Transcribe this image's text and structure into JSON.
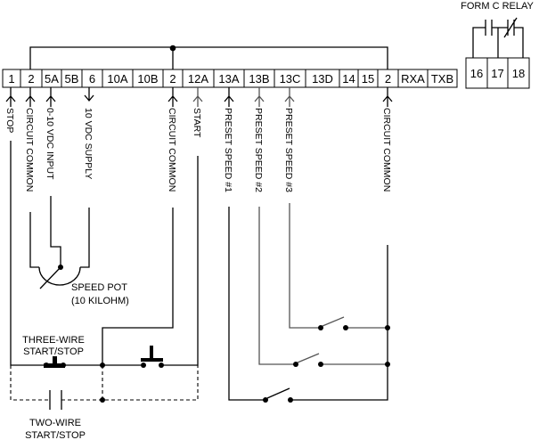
{
  "relay_title": "FORM C RELAY",
  "terminals": [
    "1",
    "2",
    "5A",
    "5B",
    "6",
    "10A",
    "10B",
    "2",
    "12A",
    "13A",
    "13B",
    "13C",
    "13D",
    "14",
    "15",
    "2",
    "RXA",
    "TXB"
  ],
  "relay_terminals": [
    "16",
    "17",
    "18"
  ],
  "wire_labels": {
    "stop": "STOP",
    "circuit_common_1": "CIRCUIT COMMON",
    "vdc_input": "0-10 VDC INPUT",
    "vdc_supply": "10 VDC SUPPLY",
    "circuit_common_2": "CIRCUIT COMMON",
    "start": "START",
    "preset1": "PRESET SPEED #1",
    "preset2": "PRESET SPEED #2",
    "preset3": "PRESET SPEED #3",
    "circuit_common_3": "CIRCUIT COMMON"
  },
  "speed_pot": {
    "line1": "SPEED POT",
    "line2": "(10 KILOHM)"
  },
  "three_wire": {
    "line1": "THREE-WIRE",
    "line2": "START/STOP"
  },
  "two_wire": {
    "line1": "TWO-WIRE",
    "line2": "START/STOP"
  }
}
